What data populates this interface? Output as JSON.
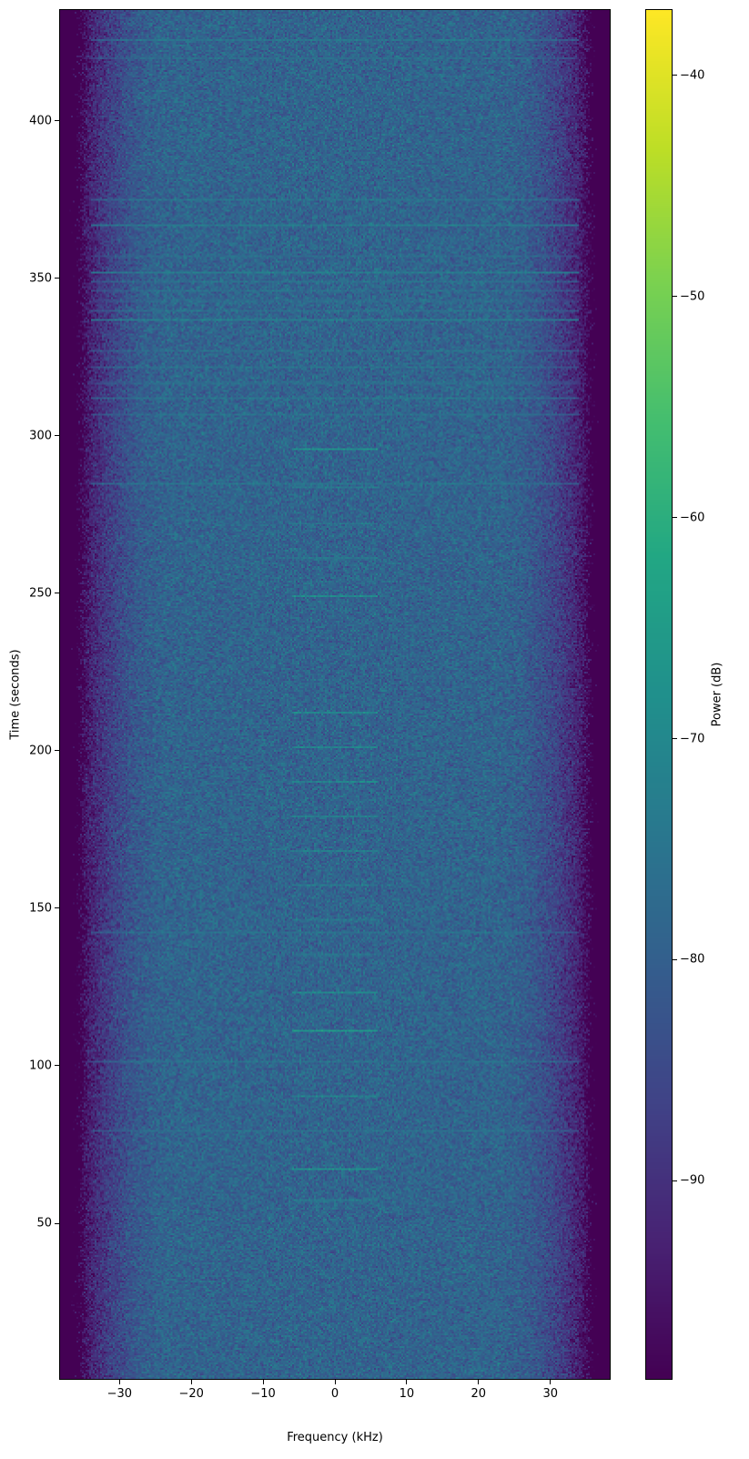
{
  "chart_data": {
    "type": "heatmap",
    "title": "",
    "xlabel": "Frequency (kHz)",
    "ylabel": "Time (seconds)",
    "xlim": [
      -38.4,
      38.4
    ],
    "ylim": [
      0.3,
      435.5
    ],
    "xticks": [
      -30,
      -20,
      -10,
      0,
      10,
      20,
      30
    ],
    "yticks": [
      50,
      100,
      150,
      200,
      250,
      300,
      350,
      400
    ],
    "colormap": "viridis",
    "colorbar": {
      "label": "Power (dB)",
      "range": [
        -99,
        -37
      ],
      "ticks": [
        -40,
        -50,
        -60,
        -70,
        -80,
        -90
      ]
    },
    "grid": false,
    "noise_floor_db": -79,
    "passband_edge_khz": 34,
    "band_edge_floor_db": -99,
    "narrowband_bursts": {
      "freq_range_khz": [
        -6,
        6
      ],
      "times_s": [
        57,
        67,
        90,
        111,
        123,
        135,
        146,
        157,
        168,
        179,
        190,
        201,
        212,
        249,
        261,
        272,
        284,
        296
      ],
      "peak_db": -66
    },
    "broadband_lines": {
      "times_s": [
        79,
        101,
        142,
        285,
        307,
        312,
        317,
        322,
        327,
        337,
        340,
        343,
        346,
        349,
        352,
        357,
        367,
        375,
        420,
        426
      ],
      "peak_db": -72
    }
  }
}
